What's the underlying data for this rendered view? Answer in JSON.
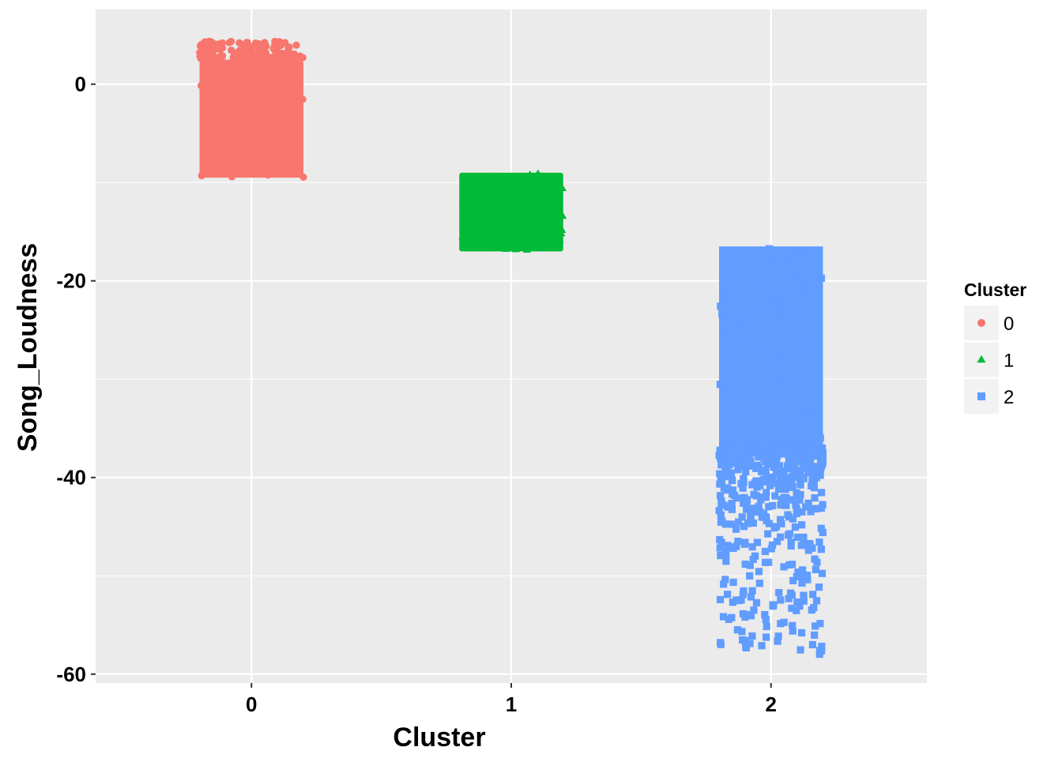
{
  "chart_data": {
    "type": "scatter",
    "xlabel": "Cluster",
    "ylabel": "Song_Loudness",
    "x_categories": [
      "0",
      "1",
      "2"
    ],
    "x_ticks": [
      "0",
      "1",
      "2"
    ],
    "xlim": [
      -0.6,
      2.6
    ],
    "y_ticks": [
      0,
      -20,
      -40,
      -60
    ],
    "y_tick_labels": [
      "0",
      "-20",
      "-40",
      "-60"
    ],
    "ylim": [
      -60.9,
      7.6
    ],
    "grid": true,
    "panel_background": "#EBEBEB",
    "grid_color": "#FFFFFF",
    "legend": {
      "title": "Cluster",
      "placement": "right",
      "items": [
        {
          "label": "0",
          "shape": "circle",
          "color": "#F8766D"
        },
        {
          "label": "1",
          "shape": "triangle",
          "color": "#00BA38"
        },
        {
          "label": "2",
          "shape": "square",
          "color": "#619CFF"
        }
      ]
    },
    "series": [
      {
        "name": "0",
        "shape": "circle",
        "color": "#F8766D",
        "x_center": 0,
        "jitter_width": 0.2,
        "dense_y_range": [
          -9.5,
          2.5
        ],
        "sparse_top_y_range": [
          2.5,
          4.4
        ]
      },
      {
        "name": "1",
        "shape": "triangle",
        "color": "#00BA38",
        "x_center": 1,
        "jitter_width": 0.2,
        "dense_y_range": [
          -17,
          -9
        ]
      },
      {
        "name": "2",
        "shape": "square",
        "color": "#619CFF",
        "x_center": 2,
        "jitter_width": 0.2,
        "dense_y_range": [
          -37,
          -16.5
        ],
        "sparse_bottom_y_range": [
          -58,
          -37
        ]
      }
    ]
  }
}
